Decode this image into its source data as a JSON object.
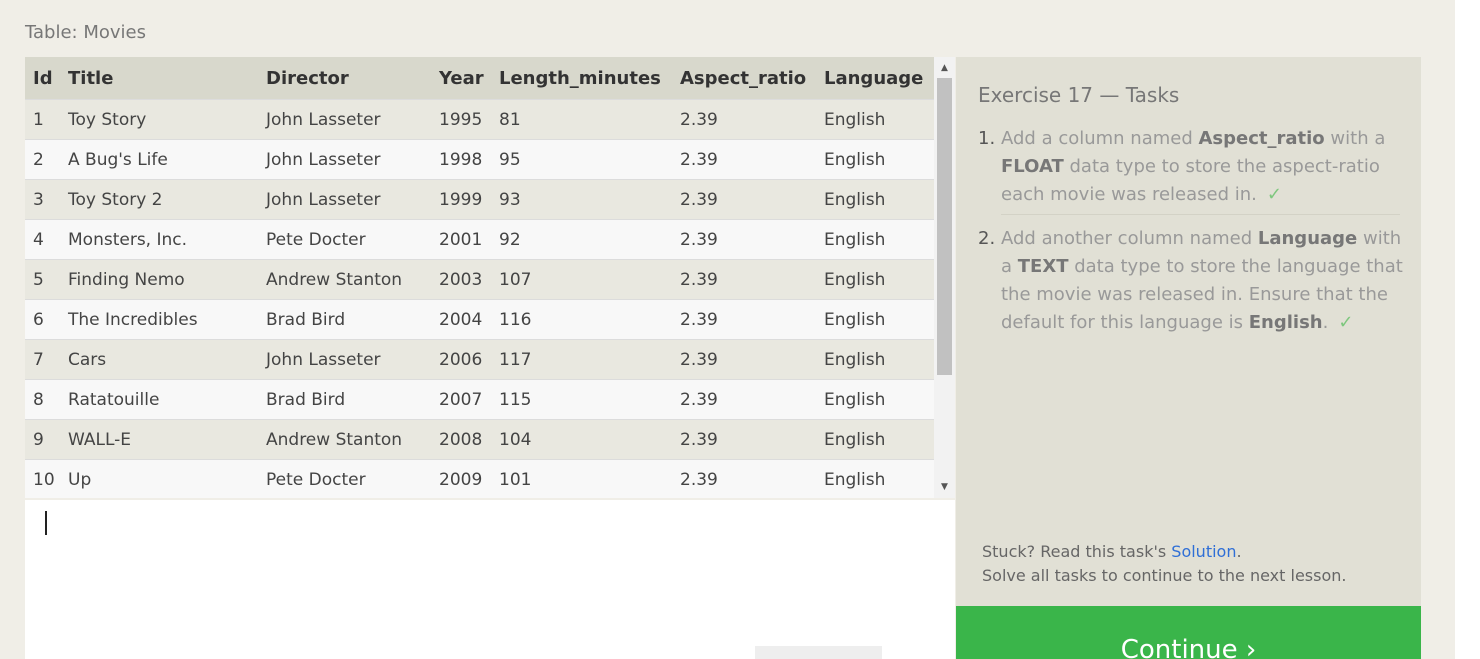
{
  "table_caption": "Table: Movies",
  "table": {
    "columns": [
      "Id",
      "Title",
      "Director",
      "Year",
      "Length_minutes",
      "Aspect_ratio",
      "Language"
    ],
    "rows": [
      [
        "1",
        "Toy Story",
        "John Lasseter",
        "1995",
        "81",
        "2.39",
        "English"
      ],
      [
        "2",
        "A Bug's Life",
        "John Lasseter",
        "1998",
        "95",
        "2.39",
        "English"
      ],
      [
        "3",
        "Toy Story 2",
        "John Lasseter",
        "1999",
        "93",
        "2.39",
        "English"
      ],
      [
        "4",
        "Monsters, Inc.",
        "Pete Docter",
        "2001",
        "92",
        "2.39",
        "English"
      ],
      [
        "5",
        "Finding Nemo",
        "Andrew Stanton",
        "2003",
        "107",
        "2.39",
        "English"
      ],
      [
        "6",
        "The Incredibles",
        "Brad Bird",
        "2004",
        "116",
        "2.39",
        "English"
      ],
      [
        "7",
        "Cars",
        "John Lasseter",
        "2006",
        "117",
        "2.39",
        "English"
      ],
      [
        "8",
        "Ratatouille",
        "Brad Bird",
        "2007",
        "115",
        "2.39",
        "English"
      ],
      [
        "9",
        "WALL-E",
        "Andrew Stanton",
        "2008",
        "104",
        "2.39",
        "English"
      ],
      [
        "10",
        "Up",
        "Pete Docter",
        "2009",
        "101",
        "2.39",
        "English"
      ]
    ]
  },
  "icons": {
    "scroll_up": "▲",
    "scroll_down": "▼"
  },
  "tasks": {
    "title": "Exercise 17 — Tasks",
    "items": [
      {
        "num": "1.",
        "t1": "Add a column named ",
        "b1": "Aspect_ratio",
        "t2": " with a ",
        "b2": "FLOAT",
        "t3": " data type to store the aspect-ratio each movie was released in.",
        "check": "✓"
      },
      {
        "num": "2.",
        "t1": "Add another column named ",
        "b1": "Language",
        "t2": " with a ",
        "b2": "TEXT",
        "t3": " data type to store the language that the movie was released in. Ensure that the default for this language is ",
        "b3": "English",
        "t4": ".",
        "check": "✓"
      }
    ],
    "stuck_prefix": "Stuck? Read this task's ",
    "solution_link": "Solution",
    "stuck_suffix": ".",
    "solve_all": "Solve all tasks to continue to the next lesson."
  },
  "continue_label": "Continue ›",
  "colors": {
    "continue_bg": "#3ab54a",
    "link": "#2f6fd6",
    "check": "#7ec77e"
  }
}
